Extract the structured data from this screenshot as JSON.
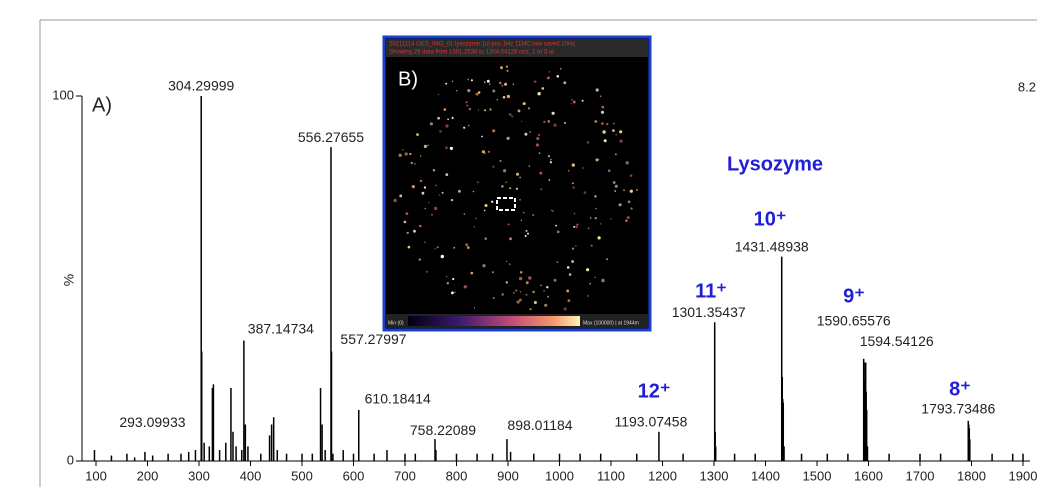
{
  "chart_data": {
    "type": "stem",
    "panel_label": "A)",
    "ylabel": "%",
    "corner_text": "8.2",
    "xlim": [
      72.8,
      1913.6
    ],
    "ylim": [
      0,
      100
    ],
    "xticks": [
      100,
      200,
      300,
      400,
      500,
      600,
      700,
      800,
      900,
      1000,
      1100,
      1200,
      1300,
      1400,
      1500,
      1600,
      1700,
      1800,
      1900
    ],
    "yticks": [
      0,
      100
    ],
    "color": "#000000",
    "label_color": "#222222",
    "labeled_peaks": {
      "x": [
        304.29999,
        556.27655,
        387.14734,
        557.27997,
        293.09933,
        610.18414,
        758.22089,
        898.01184,
        1193.07458,
        1301.35437,
        1431.48938,
        1590.65576,
        1594.54126,
        1793.73486
      ],
      "values": [
        100,
        86,
        33,
        30,
        3,
        14,
        6,
        6,
        8,
        38,
        56,
        28,
        27,
        11
      ]
    },
    "peaks": {
      "x": [
        97,
        130,
        160,
        175,
        195,
        210,
        240,
        265,
        280,
        305.3,
        310,
        320,
        326,
        328,
        340,
        352,
        362,
        366,
        372,
        383,
        390,
        395,
        420,
        437,
        441,
        445,
        452,
        470,
        500,
        520,
        536,
        539,
        545,
        560,
        580,
        600,
        640,
        665,
        700,
        720,
        760,
        800,
        840,
        870,
        905,
        950,
        1000,
        1040,
        1080,
        1150,
        1240,
        1302.3,
        1303.3,
        1340,
        1380,
        1432.5,
        1433.5,
        1434.5,
        1436,
        1470,
        1520,
        1560,
        1591.6,
        1592.6,
        1595.5,
        1596.5,
        1598,
        1640,
        1700,
        1740,
        1794.7,
        1795.7,
        1796.7,
        1840,
        1880,
        1900
      ],
      "values": [
        3,
        1.5,
        2,
        1,
        2.5,
        1.5,
        2,
        2,
        2.5,
        30,
        5,
        4,
        20,
        21,
        3,
        5,
        20,
        8,
        4,
        3,
        10,
        4,
        2,
        7,
        10,
        12,
        3,
        2,
        2,
        2,
        20,
        10,
        3,
        2,
        3,
        2,
        2,
        3,
        2,
        2,
        3,
        2,
        2,
        2,
        2.5,
        2,
        2,
        2,
        2,
        2,
        2,
        8,
        4,
        2,
        2,
        23,
        17,
        16,
        4,
        2,
        2,
        2,
        27,
        22,
        19,
        14,
        4,
        2,
        2,
        2,
        10,
        9,
        6,
        2,
        2,
        2
      ]
    },
    "annotations": [
      "Lysozyme",
      "10⁺",
      "11⁺",
      "12⁺",
      "9⁺",
      "8⁺"
    ]
  },
  "inset": {
    "label": "B)",
    "header": [
      "20211114 OES_IMG_01 lysozyme 1ul pos 1Hz 11MC.raw saved 10Hz",
      "Showing 29 data from 1301.2538 to 1304.54128 m/z, 1 to 3 ut"
    ],
    "colorbar_min": "Min (0)",
    "colorbar_max": "Max (100000) | at 1944m"
  }
}
